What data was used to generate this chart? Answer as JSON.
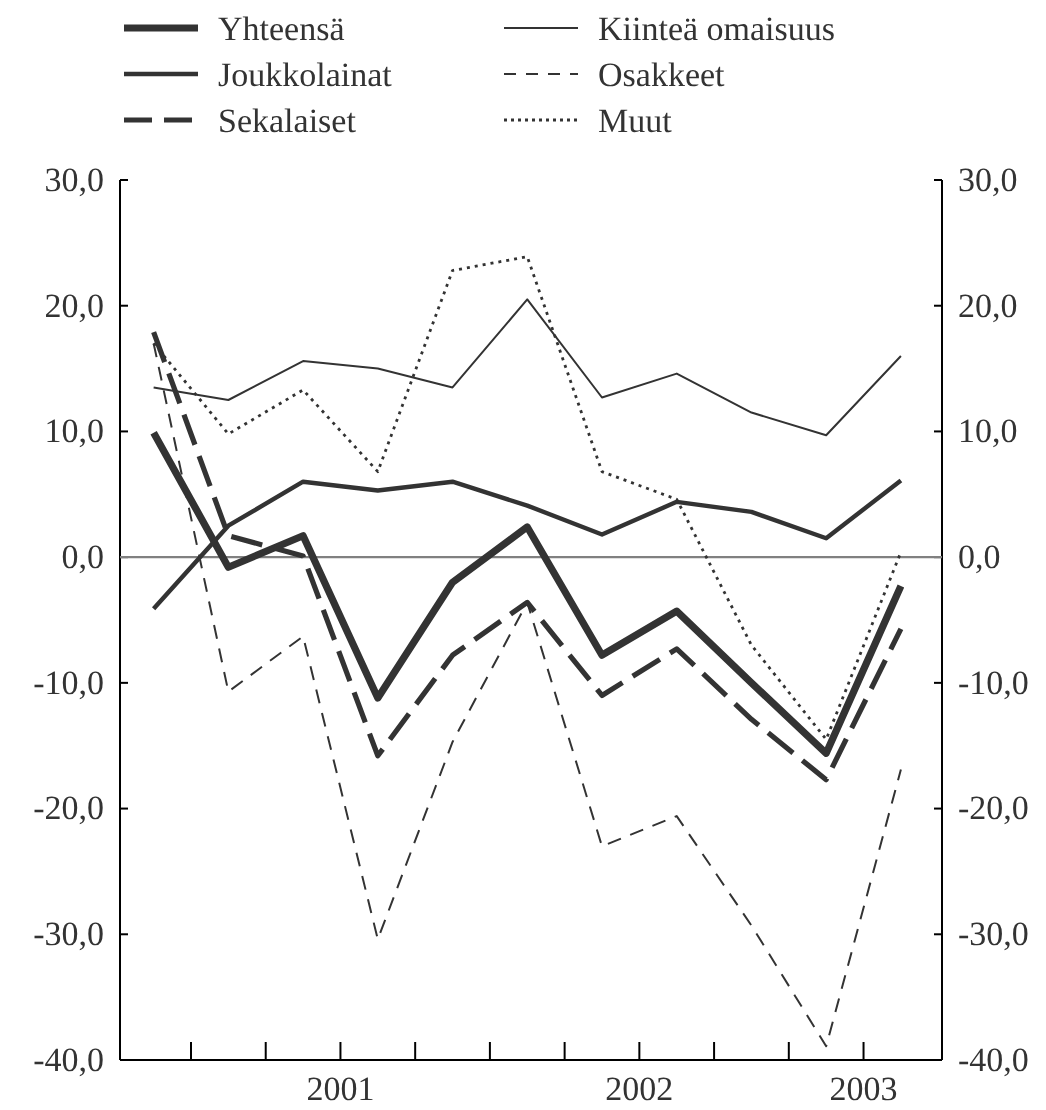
{
  "chart_data": {
    "type": "line",
    "categories": [
      null,
      null,
      null,
      null,
      null,
      null,
      null,
      null,
      null,
      null,
      null
    ],
    "annotations": [
      "2001",
      "2002",
      "2003"
    ],
    "ylim": [
      -40,
      30
    ],
    "yticks": [
      {
        "value": -40,
        "label": "-40,0"
      },
      {
        "value": -30,
        "label": "-30,0"
      },
      {
        "value": -20,
        "label": "-20,0"
      },
      {
        "value": -10,
        "label": "-10,0"
      },
      {
        "value": 0,
        "label": "0,0"
      },
      {
        "value": 10,
        "label": "10,0"
      },
      {
        "value": 20,
        "label": "20,0"
      },
      {
        "value": 30,
        "label": "30,0"
      }
    ],
    "y2lim": [
      -40,
      30
    ],
    "y2ticks": [
      {
        "value": -40,
        "label": "-40,0"
      },
      {
        "value": -30,
        "label": "-30,0"
      },
      {
        "value": -20,
        "label": "-20,0"
      },
      {
        "value": -10,
        "label": "-10,0"
      },
      {
        "value": 0,
        "label": "0,0"
      },
      {
        "value": 10,
        "label": "10,0"
      },
      {
        "value": 20,
        "label": "20,0"
      },
      {
        "value": 30,
        "label": "30,0"
      }
    ],
    "ref_lines": [
      {
        "axis": "y",
        "value": 0,
        "color": "#808080"
      }
    ],
    "legend": "top",
    "grid": false,
    "series": [
      {
        "name": "Yhteensä",
        "color": "#333333",
        "line_style": "solid",
        "values": [
          9.9,
          -0.8,
          1.7,
          -11.2,
          -2.0,
          2.4,
          -7.8,
          -4.3,
          -10.0,
          -15.6,
          -2.3
        ]
      },
      {
        "name": "Joukkolainat",
        "color": "#333333",
        "line_style": "solid",
        "values": [
          -4.1,
          2.5,
          6.0,
          5.3,
          6.0,
          4.1,
          1.8,
          4.4,
          3.6,
          1.5,
          6.1
        ]
      },
      {
        "name": "Sekalaiset",
        "color": "#333333",
        "line_style": "dashed",
        "values": [
          17.9,
          1.7,
          0.1,
          -15.8,
          -7.8,
          -3.6,
          -11.0,
          -7.3,
          -12.9,
          -17.7,
          -5.7
        ]
      },
      {
        "name": "Kiinteä omaisuus",
        "color": "#333333",
        "line_style": "solid",
        "values": [
          13.5,
          12.5,
          15.6,
          15.0,
          13.5,
          20.5,
          12.7,
          14.6,
          11.5,
          9.7,
          16.0
        ]
      },
      {
        "name": "Osakkeet",
        "color": "#333333",
        "line_style": "dashed",
        "values": [
          17.0,
          -10.7,
          -6.3,
          -30.4,
          -14.7,
          -3.6,
          -23.0,
          -20.6,
          -29.3,
          -38.9,
          -16.9
        ]
      },
      {
        "name": "Muut",
        "color": "#333333",
        "line_style": "dotted",
        "values": [
          17.0,
          9.8,
          13.3,
          6.8,
          22.8,
          23.9,
          6.8,
          4.6,
          -7.0,
          -14.5,
          0.4
        ]
      }
    ]
  }
}
